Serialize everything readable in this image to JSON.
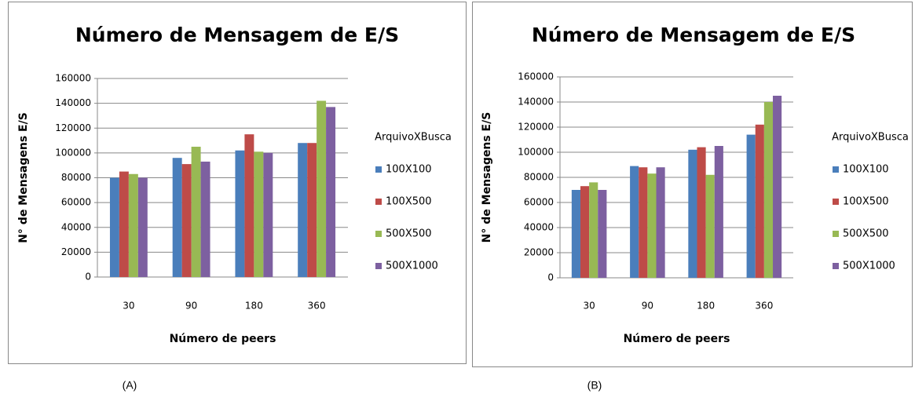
{
  "chart_data": [
    {
      "type": "bar",
      "title": "Número de Mensagem de E/S",
      "xlabel": "Número de peers",
      "ylabel": "N° de Mensagens E/S",
      "legend_title": "ArquivoXBusca",
      "caption": "(A)",
      "grid": true,
      "categories": [
        "30",
        "90",
        "180",
        "360"
      ],
      "series": [
        {
          "name": "100X100",
          "color": "#4a7ebb",
          "values": [
            80000,
            96000,
            102000,
            108000
          ]
        },
        {
          "name": "100X500",
          "color": "#be4b48",
          "values": [
            85000,
            91000,
            115000,
            108000
          ]
        },
        {
          "name": "500X500",
          "color": "#98b954",
          "values": [
            83000,
            105000,
            101000,
            142000
          ]
        },
        {
          "name": "500X1000",
          "color": "#7d60a0",
          "values": [
            80000,
            93000,
            100000,
            137000
          ]
        }
      ],
      "ylim": [
        0,
        160000
      ],
      "yticks": [
        0,
        20000,
        40000,
        60000,
        80000,
        100000,
        120000,
        140000,
        160000
      ]
    },
    {
      "type": "bar",
      "title": "Número de Mensagem de E/S",
      "xlabel": "Número de peers",
      "ylabel": "N° de Mensagens E/S",
      "legend_title": "ArquivoXBusca",
      "caption": "(B)",
      "grid": true,
      "categories": [
        "30",
        "90",
        "180",
        "360"
      ],
      "series": [
        {
          "name": "100X100",
          "color": "#4a7ebb",
          "values": [
            70000,
            89000,
            102000,
            114000
          ]
        },
        {
          "name": "100X500",
          "color": "#be4b48",
          "values": [
            73000,
            88000,
            104000,
            122000
          ]
        },
        {
          "name": "500X500",
          "color": "#98b954",
          "values": [
            76000,
            83000,
            82000,
            140000
          ]
        },
        {
          "name": "500X1000",
          "color": "#7d60a0",
          "values": [
            70000,
            88000,
            105000,
            145000
          ]
        }
      ],
      "ylim": [
        0,
        160000
      ],
      "yticks": [
        0,
        20000,
        40000,
        60000,
        80000,
        100000,
        120000,
        140000,
        160000
      ]
    }
  ]
}
